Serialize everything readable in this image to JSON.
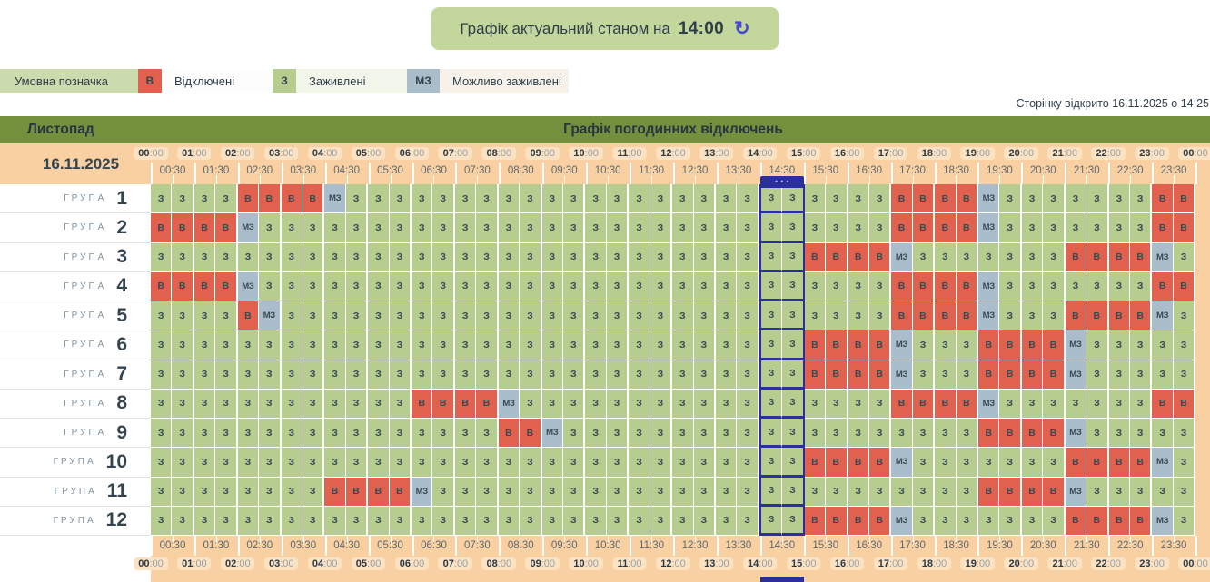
{
  "banner": {
    "text": "Графік актуальний станом на",
    "time": "14:00"
  },
  "legend": {
    "title": "Умовна позначка",
    "items": [
      {
        "code": "В",
        "label": "Відключені",
        "state": "v"
      },
      {
        "code": "З",
        "label": "Заживлені",
        "state": "z"
      },
      {
        "code": "МЗ",
        "label": "Можливо заживлені",
        "state": "m"
      }
    ]
  },
  "page_opened": "Сторінку відкрито 16.11.2025 о 14:25",
  "table": {
    "month": "Листопад",
    "title": "Графік погодинних відключень",
    "date": "16.11.2025",
    "group_word": "ГРУПА",
    "hours": [
      "00:00",
      "01:00",
      "02:00",
      "03:00",
      "04:00",
      "05:00",
      "06:00",
      "07:00",
      "08:00",
      "09:00",
      "10:00",
      "11:00",
      "12:00",
      "13:00",
      "14:00",
      "15:00",
      "16:00",
      "17:00",
      "18:00",
      "19:00",
      "20:00",
      "21:00",
      "22:00",
      "23:00",
      "00:00"
    ],
    "half_hours": [
      "00:30",
      "01:30",
      "02:30",
      "03:30",
      "04:30",
      "05:30",
      "06:30",
      "07:30",
      "08:30",
      "09:30",
      "10:30",
      "11:30",
      "12:30",
      "13:30",
      "14:30",
      "15:30",
      "16:30",
      "17:30",
      "18:30",
      "19:30",
      "20:30",
      "21:30",
      "22:30",
      "23:30"
    ],
    "current_hour": "14:00",
    "marker_columns": [
      28,
      29
    ],
    "marker_dots": "•••",
    "groups": [
      {
        "number": "1",
        "cells": "zzzzvvvvmzzzzzzzzzzzzzzzzzzzzzzzzzvvvvmzzzzzzzvv"
      },
      {
        "number": "2",
        "cells": "vvvvmzzzzzzzzzzzzzzzzzzzzzzzzzzzzzvvvvmzzzzzzzvv"
      },
      {
        "number": "3",
        "cells": "zzzzzzzzzzzzzzzzzzzzzzzzzzzzzzvvvvmzzzzzzzvvvvmz"
      },
      {
        "number": "4",
        "cells": "vvvvmzzzzzzzzzzzzzzzzzzzzzzzzzzzzzvvvvmzzzzzzzvv"
      },
      {
        "number": "5",
        "cells": "zzzzvmzzzzzzzzzzzzzzzzzzzzzzzzzzzzvvvvmzzzvvvvmz"
      },
      {
        "number": "6",
        "cells": "zzzzzzzzzzzzzzzzzzzzzzzzzzzzzzvvvvmzzzvvvvmzzzzz"
      },
      {
        "number": "7",
        "cells": "zzzzzzzzzzzzzzzzzzzzzzzzzzzzzzvvvvmzzzvvvvmzzzzz"
      },
      {
        "number": "8",
        "cells": "zzzzzzzzzzzzvvvvmzzzzzzzzzzzzzzzzzvvvvmzzzzzzzvv"
      },
      {
        "number": "9",
        "cells": "zzzzzzzzzzzzzzzzvvmzzzzzzzzzzzzzzzzzzzvvvvmzzzzz"
      },
      {
        "number": "10",
        "cells": "zzzzzzzzzzzzzzzzzzzzzzzzzzzzzzvvvvmzzzzzzzvvvvmz"
      },
      {
        "number": "11",
        "cells": "zzzzzzzzvvvvmzzzzzzzzzzzzzzzzzzzzzzzzzvvvvmzzzzz"
      },
      {
        "number": "12",
        "cells": "zzzzzzzzzzzzzzzzzzzzzzzzzzzzzzvvvvmzzzzzzzvvvvmz"
      }
    ]
  },
  "states": {
    "z": {
      "label": "З",
      "color": "#b7cd8f"
    },
    "v": {
      "label": "В",
      "color": "#e2614e"
    },
    "m": {
      "label": "МЗ",
      "color": "#a9bdca"
    }
  },
  "colors": {
    "banner_bg": "#c3d79c",
    "band_olive": "#74903c",
    "band_orange": "#f9d0a1",
    "hour_pill": "#fbe2c3",
    "marker_blue": "#2a2e9e",
    "refresh_blue": "#4746d3",
    "state_z": "#b7cd8f",
    "state_v": "#e2614e",
    "state_m": "#a9bdca"
  }
}
